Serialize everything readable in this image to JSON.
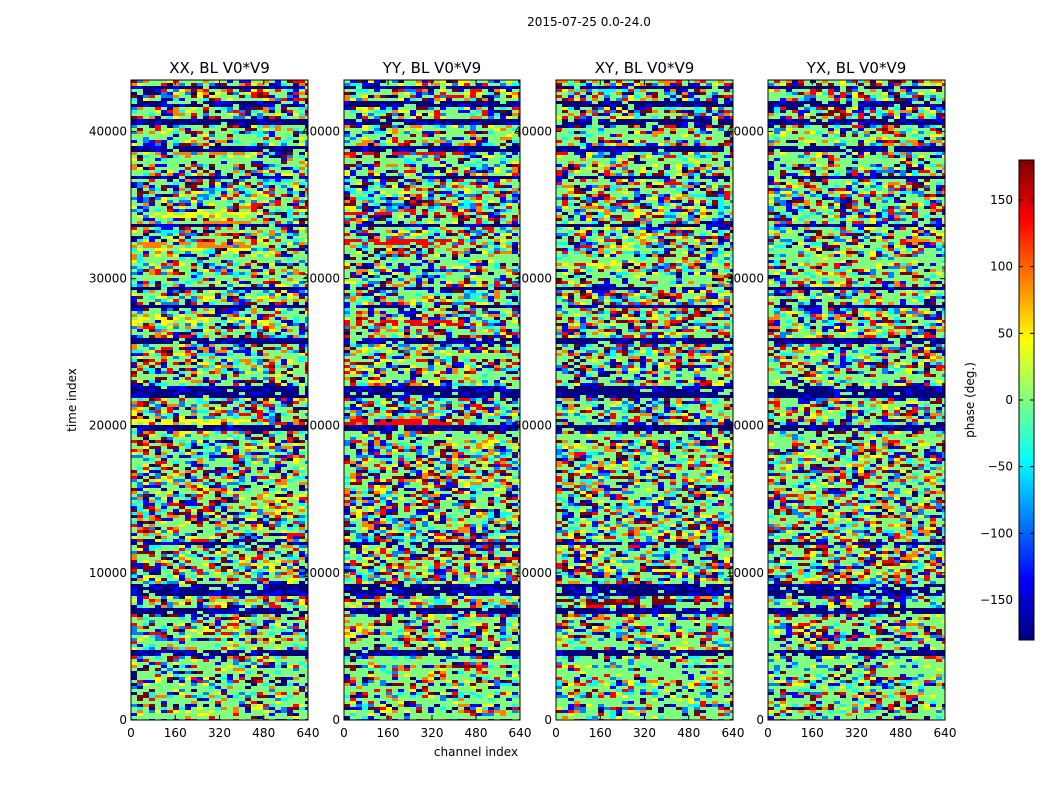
{
  "suptitle": "2015-07-25 0.0-24.0",
  "chart_data": {
    "type": "heatmap",
    "title": "2015-07-25 0.0-24.0",
    "xlabel": "channel index",
    "ylabel": "time index",
    "xlim": [
      0,
      640
    ],
    "ylim": [
      0,
      43500
    ],
    "xticks": [
      0,
      160,
      320,
      480,
      640
    ],
    "yticks": [
      0,
      10000,
      20000,
      30000,
      40000
    ],
    "panels": [
      {
        "name": "XX",
        "title": "XX, BL V0*V9"
      },
      {
        "name": "YY",
        "title": "YY, BL V0*V9"
      },
      {
        "name": "XY",
        "title": "XY, BL V0*V9"
      },
      {
        "name": "YX",
        "title": "YX, BL V0*V9"
      }
    ],
    "colorbar": {
      "label": "phase (deg.)",
      "range": [
        -180,
        180
      ],
      "ticks": [
        -150,
        -100,
        -50,
        0,
        50,
        100,
        150
      ],
      "colormap": [
        "#00007f",
        "#0000ff",
        "#007fff",
        "#00ffff",
        "#7fff7f",
        "#ffff00",
        "#ff7f00",
        "#ff0000",
        "#7f0000"
      ]
    },
    "bands": {
      "dark": [
        [
          4300,
          4700
        ],
        [
          7300,
          7600
        ],
        [
          8500,
          9200
        ],
        [
          11900,
          12100
        ],
        [
          17300,
          17500
        ],
        [
          19600,
          20000
        ],
        [
          21800,
          22600
        ],
        [
          25500,
          26000
        ],
        [
          28000,
          28300
        ],
        [
          29300,
          29500
        ],
        [
          33500,
          33700
        ],
        [
          36700,
          37000
        ],
        [
          38700,
          39000
        ],
        [
          40500,
          40800
        ],
        [
          41700,
          42000
        ],
        [
          42800,
          43000
        ]
      ],
      "light": [
        [
          0,
          500
        ],
        [
          1000,
          1400
        ],
        [
          2000,
          2400
        ],
        [
          3000,
          3500
        ],
        [
          3700,
          4200
        ],
        [
          5000,
          5400
        ],
        [
          6600,
          6900
        ],
        [
          19000,
          19400
        ],
        [
          23200,
          23600
        ],
        [
          24500,
          24800
        ],
        [
          29800,
          30300
        ],
        [
          31000,
          31500
        ],
        [
          37800,
          38200
        ],
        [
          39400,
          39900
        ],
        [
          40000,
          40300
        ]
      ],
      "orange_xx": [
        [
          33700,
          33900
        ],
        [
          32100,
          32500
        ],
        [
          38400,
          38800
        ]
      ],
      "yellow_xx": [
        [
          31800,
          32100
        ],
        [
          27000,
          27300
        ],
        [
          20000,
          20400
        ],
        [
          34200,
          34600
        ]
      ],
      "red_yy": [
        [
          19800,
          20500
        ],
        [
          32300,
          32700
        ],
        [
          34300,
          34600
        ],
        [
          26700,
          27200
        ],
        [
          38500,
          38700
        ]
      ],
      "red_xy": [
        [
          7800,
          8300
        ]
      ]
    }
  }
}
